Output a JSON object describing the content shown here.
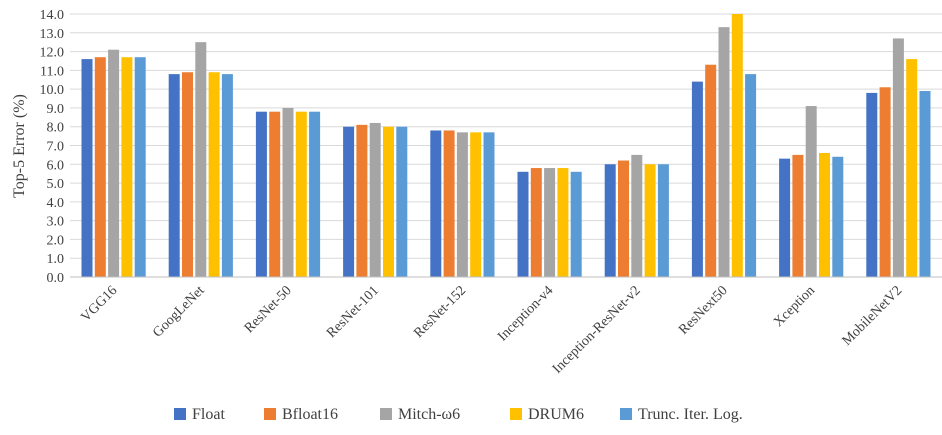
{
  "chart_data": {
    "type": "bar",
    "title": "",
    "xlabel": "",
    "ylabel": "Top-5 Error (%)",
    "ylim": [
      0,
      14
    ],
    "ytick_step": 1,
    "grid": true,
    "legend_position": "bottom",
    "categories": [
      "VGG16",
      "GoogLeNet",
      "ResNet-50",
      "ResNet-101",
      "ResNet-152",
      "Inception-v4",
      "Inception-ResNet-v2",
      "ResNext50",
      "Xception",
      "MobileNetV2"
    ],
    "series": [
      {
        "name": "Float",
        "color": "#4472C4",
        "values": [
          11.6,
          10.8,
          8.8,
          8.0,
          7.8,
          5.6,
          6.0,
          10.4,
          6.3,
          9.8
        ]
      },
      {
        "name": "Bfloat16",
        "color": "#ED7D31",
        "values": [
          11.7,
          10.9,
          8.8,
          8.1,
          7.8,
          5.8,
          6.2,
          11.3,
          6.5,
          10.1
        ]
      },
      {
        "name": "Mitch-ω6",
        "color": "#A5A5A5",
        "values": [
          12.1,
          12.5,
          9.0,
          8.2,
          7.7,
          5.8,
          6.5,
          13.3,
          9.1,
          12.7
        ]
      },
      {
        "name": "DRUM6",
        "color": "#FFC000",
        "values": [
          11.7,
          10.9,
          8.8,
          8.0,
          7.7,
          5.8,
          6.0,
          14.0,
          6.6,
          11.6
        ]
      },
      {
        "name": "Trunc. Iter. Log.",
        "color": "#5B9BD5",
        "values": [
          11.7,
          10.8,
          8.8,
          8.0,
          7.7,
          5.6,
          6.0,
          10.8,
          6.4,
          9.9
        ]
      }
    ]
  }
}
